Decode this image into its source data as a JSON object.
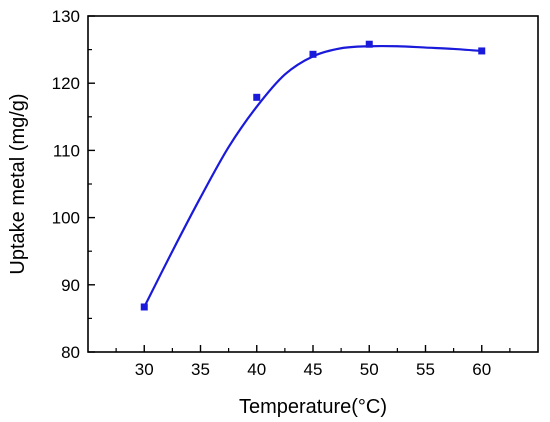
{
  "chart_data": {
    "type": "scatter",
    "xlabel": "Temperature(°C)",
    "ylabel": "Uptake metal (mg/g)",
    "xlim": [
      25,
      65
    ],
    "ylim": [
      80,
      130
    ],
    "x_ticks": [
      "30",
      "35",
      "40",
      "45",
      "50",
      "55",
      "60"
    ],
    "y_ticks": [
      "80",
      "90",
      "100",
      "110",
      "120",
      "130"
    ],
    "grid": false,
    "series": [
      {
        "color": "#1a1adb",
        "marker": "square",
        "points": [
          {
            "x": 30,
            "y": 86.7
          },
          {
            "x": 40,
            "y": 117.9
          },
          {
            "x": 45,
            "y": 124.3
          },
          {
            "x": 50,
            "y": 125.8
          },
          {
            "x": 60,
            "y": 124.8
          }
        ],
        "fit_curve": [
          {
            "x": 30,
            "y": 86.7
          },
          {
            "x": 32.5,
            "y": 95.0
          },
          {
            "x": 35,
            "y": 103.0
          },
          {
            "x": 37.5,
            "y": 110.5
          },
          {
            "x": 40,
            "y": 116.5
          },
          {
            "x": 42.5,
            "y": 121.3
          },
          {
            "x": 45,
            "y": 124.0
          },
          {
            "x": 47.5,
            "y": 125.2
          },
          {
            "x": 50,
            "y": 125.5
          },
          {
            "x": 52.5,
            "y": 125.5
          },
          {
            "x": 55,
            "y": 125.3
          },
          {
            "x": 57.5,
            "y": 125.1
          },
          {
            "x": 60,
            "y": 124.8
          }
        ]
      }
    ]
  }
}
